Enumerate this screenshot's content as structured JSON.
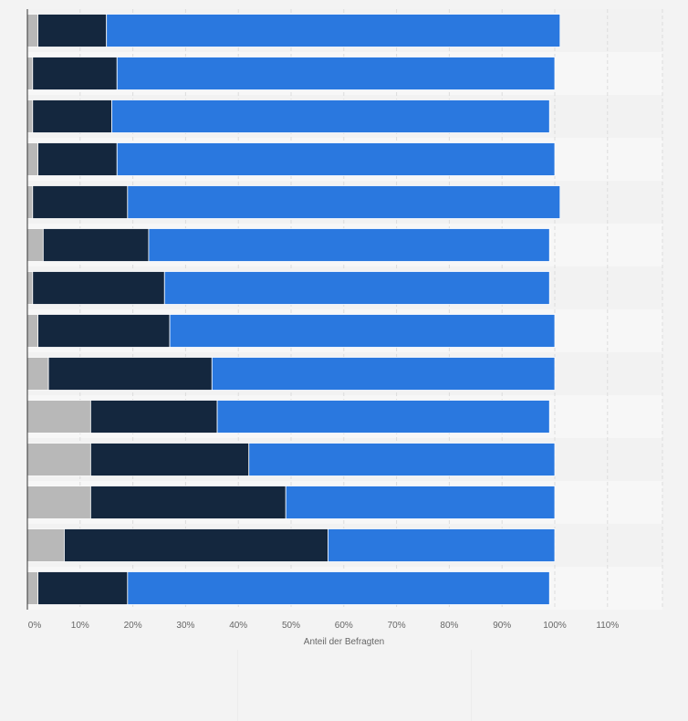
{
  "chart_data": {
    "type": "bar",
    "orientation": "horizontal",
    "stacked": true,
    "xlabel": "Anteil der Befragten",
    "xlim": [
      0,
      120
    ],
    "xticks": [
      "0%",
      "10%",
      "20%",
      "30%",
      "40%",
      "50%",
      "60%",
      "70%",
      "80%",
      "90%",
      "100%",
      "110%"
    ],
    "grid": true,
    "colors": [
      "#b8b8b8",
      "#14273e",
      "#2a78df"
    ],
    "series": [
      {
        "values": [
          2,
          1,
          1,
          2,
          1,
          3,
          1,
          2,
          4,
          12,
          12,
          12,
          7,
          2
        ]
      },
      {
        "values": [
          13,
          16,
          15,
          15,
          18,
          20,
          25,
          25,
          31,
          24,
          30,
          37,
          50,
          17
        ]
      },
      {
        "values": [
          86,
          83,
          83,
          83,
          82,
          76,
          73,
          73,
          65,
          63,
          58,
          51,
          43,
          80
        ]
      }
    ]
  }
}
